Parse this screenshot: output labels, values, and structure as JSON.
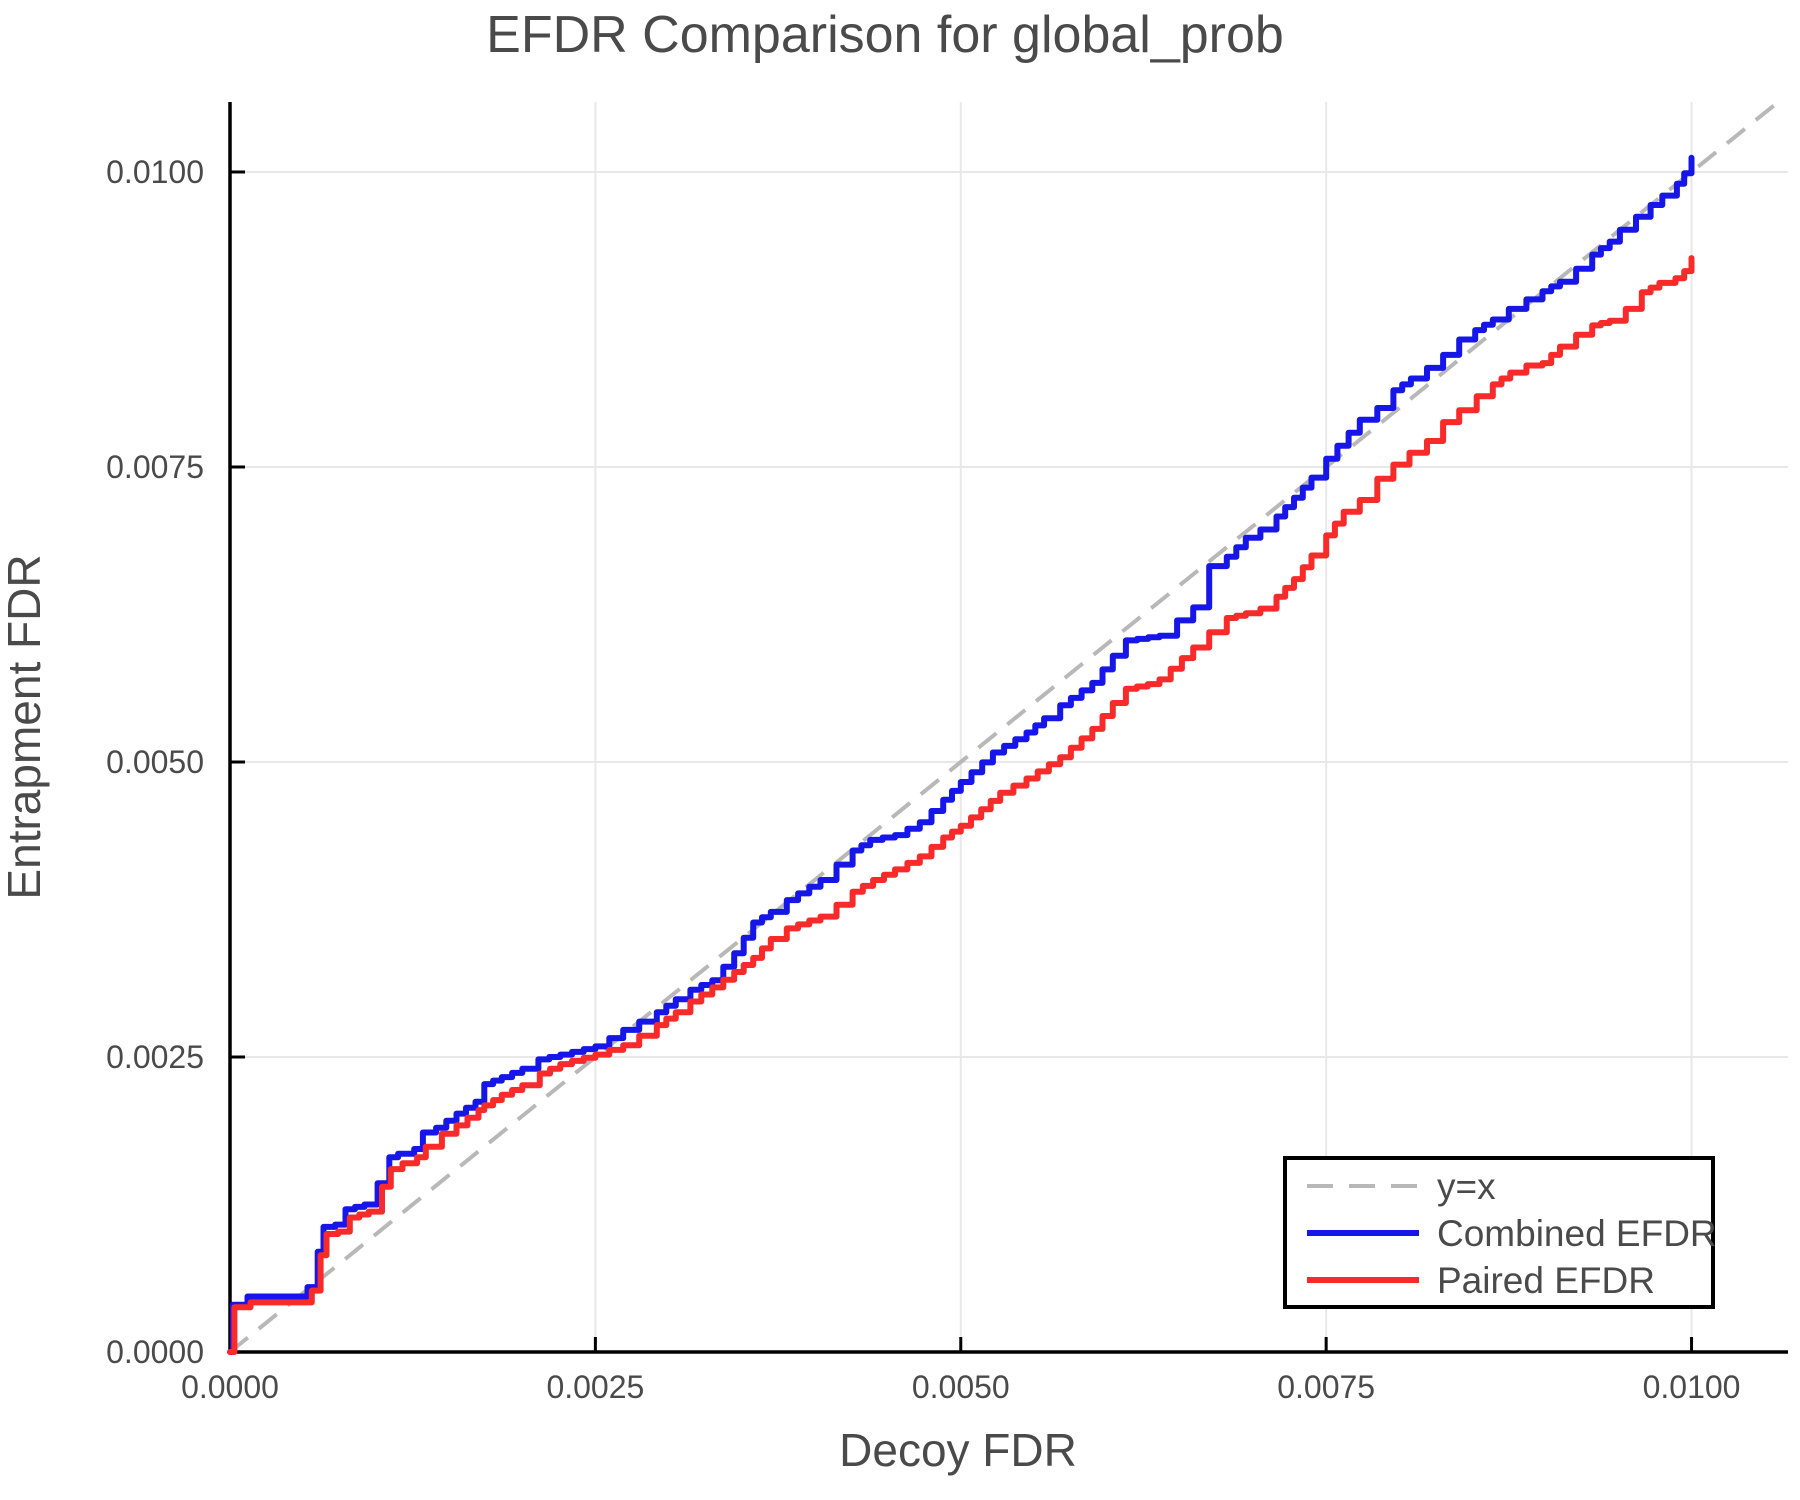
{
  "figure": {
    "background": "#ffffff",
    "text_color": "#4a4a4a",
    "axis_color": "#000000",
    "grid_color": "#e8e8e8"
  },
  "chart_data": {
    "type": "line",
    "title": "EFDR Comparison for global_prob",
    "xlabel": "Decoy FDR",
    "ylabel": "Entrapment FDR",
    "xlim": [
      0,
      0.01066
    ],
    "ylim": [
      0,
      0.010593
    ],
    "grid": true,
    "x_ticks": {
      "values": [
        0.0,
        0.0025,
        0.005,
        0.0075,
        0.01
      ],
      "labels": [
        "0.0000",
        "0.0025",
        "0.0050",
        "0.0075",
        "0.0100"
      ]
    },
    "y_ticks": {
      "values": [
        0.0,
        0.0025,
        0.005,
        0.0075,
        0.01
      ],
      "labels": [
        "0.0000",
        "0.0025",
        "0.0050",
        "0.0075",
        "0.0100"
      ]
    },
    "reference_line": {
      "label": "y=x",
      "type": "identity-diagonal",
      "color": "#b8b8b8",
      "dashed": true
    },
    "legend": {
      "position": "bottom-right",
      "entries": [
        {
          "label": "y=x",
          "color": "#b8b8b8",
          "dashed": true
        },
        {
          "label": "Combined EFDR",
          "color": "#1616e8",
          "dashed": false
        },
        {
          "label": "Paired EFDR",
          "color": "#f82a2a",
          "dashed": false
        }
      ]
    },
    "series": [
      {
        "name": "Combined EFDR",
        "color": "#1616e8",
        "points": [
          [
            0.0,
            0.0
          ],
          [
            2e-05,
            0.0004
          ],
          [
            0.00012,
            0.00047
          ],
          [
            0.00046,
            0.00047
          ],
          [
            0.00053,
            0.00055
          ],
          [
            0.0006,
            0.00085
          ],
          [
            0.00064,
            0.00106
          ],
          [
            0.00072,
            0.00108
          ],
          [
            0.00079,
            0.00121
          ],
          [
            0.00092,
            0.00125
          ],
          [
            0.00101,
            0.00143
          ],
          [
            0.00109,
            0.00165
          ],
          [
            0.00115,
            0.00168
          ],
          [
            0.00126,
            0.00172
          ],
          [
            0.00132,
            0.00186
          ],
          [
            0.00141,
            0.0019
          ],
          [
            0.00155,
            0.00202
          ],
          [
            0.00168,
            0.00212
          ],
          [
            0.00174,
            0.00227
          ],
          [
            0.00186,
            0.00233
          ],
          [
            0.002,
            0.0024
          ],
          [
            0.00211,
            0.00248
          ],
          [
            0.00226,
            0.00252
          ],
          [
            0.0025,
            0.00259
          ],
          [
            0.00269,
            0.00273
          ],
          [
            0.0028,
            0.0028
          ],
          [
            0.00292,
            0.00288
          ],
          [
            0.00305,
            0.00299
          ],
          [
            0.00315,
            0.00307
          ],
          [
            0.0033,
            0.00315
          ],
          [
            0.00345,
            0.00338
          ],
          [
            0.00358,
            0.00364
          ],
          [
            0.0037,
            0.00373
          ],
          [
            0.00381,
            0.00383
          ],
          [
            0.00404,
            0.004
          ],
          [
            0.00415,
            0.00413
          ],
          [
            0.00426,
            0.00425
          ],
          [
            0.00438,
            0.00434
          ],
          [
            0.00455,
            0.00438
          ],
          [
            0.00472,
            0.00449
          ],
          [
            0.00488,
            0.00468
          ],
          [
            0.005,
            0.00483
          ],
          [
            0.00522,
            0.00508
          ],
          [
            0.00545,
            0.00525
          ],
          [
            0.00557,
            0.00537
          ],
          [
            0.00568,
            0.00548
          ],
          [
            0.0059,
            0.00567
          ],
          [
            0.00604,
            0.0059
          ],
          [
            0.00613,
            0.00603
          ],
          [
            0.00636,
            0.00607
          ],
          [
            0.00648,
            0.0062
          ],
          [
            0.00659,
            0.00631
          ],
          [
            0.0067,
            0.00666
          ],
          [
            0.00682,
            0.00674
          ],
          [
            0.00695,
            0.0069
          ],
          [
            0.00705,
            0.00697
          ],
          [
            0.00716,
            0.00708
          ],
          [
            0.00728,
            0.00724
          ],
          [
            0.0074,
            0.00741
          ],
          [
            0.0075,
            0.00757
          ],
          [
            0.00773,
            0.0079
          ],
          [
            0.00785,
            0.008
          ],
          [
            0.00796,
            0.00815
          ],
          [
            0.00808,
            0.00825
          ],
          [
            0.00819,
            0.00834
          ],
          [
            0.0083,
            0.00845
          ],
          [
            0.00841,
            0.00858
          ],
          [
            0.00852,
            0.00866
          ],
          [
            0.00864,
            0.00875
          ],
          [
            0.00875,
            0.00884
          ],
          [
            0.00887,
            0.00892
          ],
          [
            0.00898,
            0.00899
          ],
          [
            0.0091,
            0.00907
          ],
          [
            0.00921,
            0.00918
          ],
          [
            0.00932,
            0.0093
          ],
          [
            0.00944,
            0.00941
          ],
          [
            0.00951,
            0.00951
          ],
          [
            0.00962,
            0.00962
          ],
          [
            0.00972,
            0.00972
          ],
          [
            0.0098,
            0.0098
          ],
          [
            0.0099,
            0.0099
          ],
          [
            0.00995,
            0.00999
          ],
          [
            0.01,
            0.01012
          ]
        ]
      },
      {
        "name": "Paired EFDR",
        "color": "#f82a2a",
        "points": [
          [
            0.0,
            0.0
          ],
          [
            3e-05,
            0.00038
          ],
          [
            0.00014,
            0.00042
          ],
          [
            0.0005,
            0.00042
          ],
          [
            0.00056,
            0.00052
          ],
          [
            0.00062,
            0.00082
          ],
          [
            0.00066,
            0.001
          ],
          [
            0.00074,
            0.00102
          ],
          [
            0.00082,
            0.00114
          ],
          [
            0.00095,
            0.00119
          ],
          [
            0.00104,
            0.0014
          ],
          [
            0.0011,
            0.00155
          ],
          [
            0.00118,
            0.0016
          ],
          [
            0.00128,
            0.00165
          ],
          [
            0.00134,
            0.00174
          ],
          [
            0.00145,
            0.00185
          ],
          [
            0.00155,
            0.00192
          ],
          [
            0.0017,
            0.00205
          ],
          [
            0.00174,
            0.00209
          ],
          [
            0.00186,
            0.00218
          ],
          [
            0.002,
            0.00226
          ],
          [
            0.00212,
            0.00236
          ],
          [
            0.00226,
            0.00244
          ],
          [
            0.0025,
            0.00252
          ],
          [
            0.00269,
            0.0026
          ],
          [
            0.0028,
            0.00268
          ],
          [
            0.00292,
            0.00277
          ],
          [
            0.00305,
            0.00288
          ],
          [
            0.00315,
            0.00297
          ],
          [
            0.0033,
            0.00309
          ],
          [
            0.00345,
            0.00322
          ],
          [
            0.00358,
            0.00334
          ],
          [
            0.0037,
            0.0035
          ],
          [
            0.00381,
            0.00359
          ],
          [
            0.00404,
            0.00369
          ],
          [
            0.00415,
            0.00379
          ],
          [
            0.00426,
            0.0039
          ],
          [
            0.0044,
            0.004
          ],
          [
            0.00455,
            0.00409
          ],
          [
            0.00472,
            0.0042
          ],
          [
            0.00488,
            0.00436
          ],
          [
            0.005,
            0.00446
          ],
          [
            0.00514,
            0.0046
          ],
          [
            0.00527,
            0.00474
          ],
          [
            0.00545,
            0.00486
          ],
          [
            0.00568,
            0.00504
          ],
          [
            0.0059,
            0.00528
          ],
          [
            0.00604,
            0.0055
          ],
          [
            0.00613,
            0.00562
          ],
          [
            0.00628,
            0.00566
          ],
          [
            0.00636,
            0.0057
          ],
          [
            0.00659,
            0.00597
          ],
          [
            0.0067,
            0.0061
          ],
          [
            0.00682,
            0.00622
          ],
          [
            0.00695,
            0.00626
          ],
          [
            0.00705,
            0.0063
          ],
          [
            0.00716,
            0.0064
          ],
          [
            0.00728,
            0.00655
          ],
          [
            0.0074,
            0.00675
          ],
          [
            0.0075,
            0.00692
          ],
          [
            0.00762,
            0.00712
          ],
          [
            0.00773,
            0.00722
          ],
          [
            0.00785,
            0.0074
          ],
          [
            0.00796,
            0.00752
          ],
          [
            0.00807,
            0.00762
          ],
          [
            0.00819,
            0.00772
          ],
          [
            0.0083,
            0.00788
          ],
          [
            0.00841,
            0.00798
          ],
          [
            0.00853,
            0.0081
          ],
          [
            0.00864,
            0.0082
          ],
          [
            0.00876,
            0.0083
          ],
          [
            0.00887,
            0.00836
          ],
          [
            0.00898,
            0.00838
          ],
          [
            0.0091,
            0.00852
          ],
          [
            0.00921,
            0.00862
          ],
          [
            0.00932,
            0.0087
          ],
          [
            0.00944,
            0.00874
          ],
          [
            0.00955,
            0.00884
          ],
          [
            0.00966,
            0.00898
          ],
          [
            0.00978,
            0.00906
          ],
          [
            0.00989,
            0.0091
          ],
          [
            0.00995,
            0.00916
          ],
          [
            0.01,
            0.00927
          ]
        ]
      }
    ]
  }
}
